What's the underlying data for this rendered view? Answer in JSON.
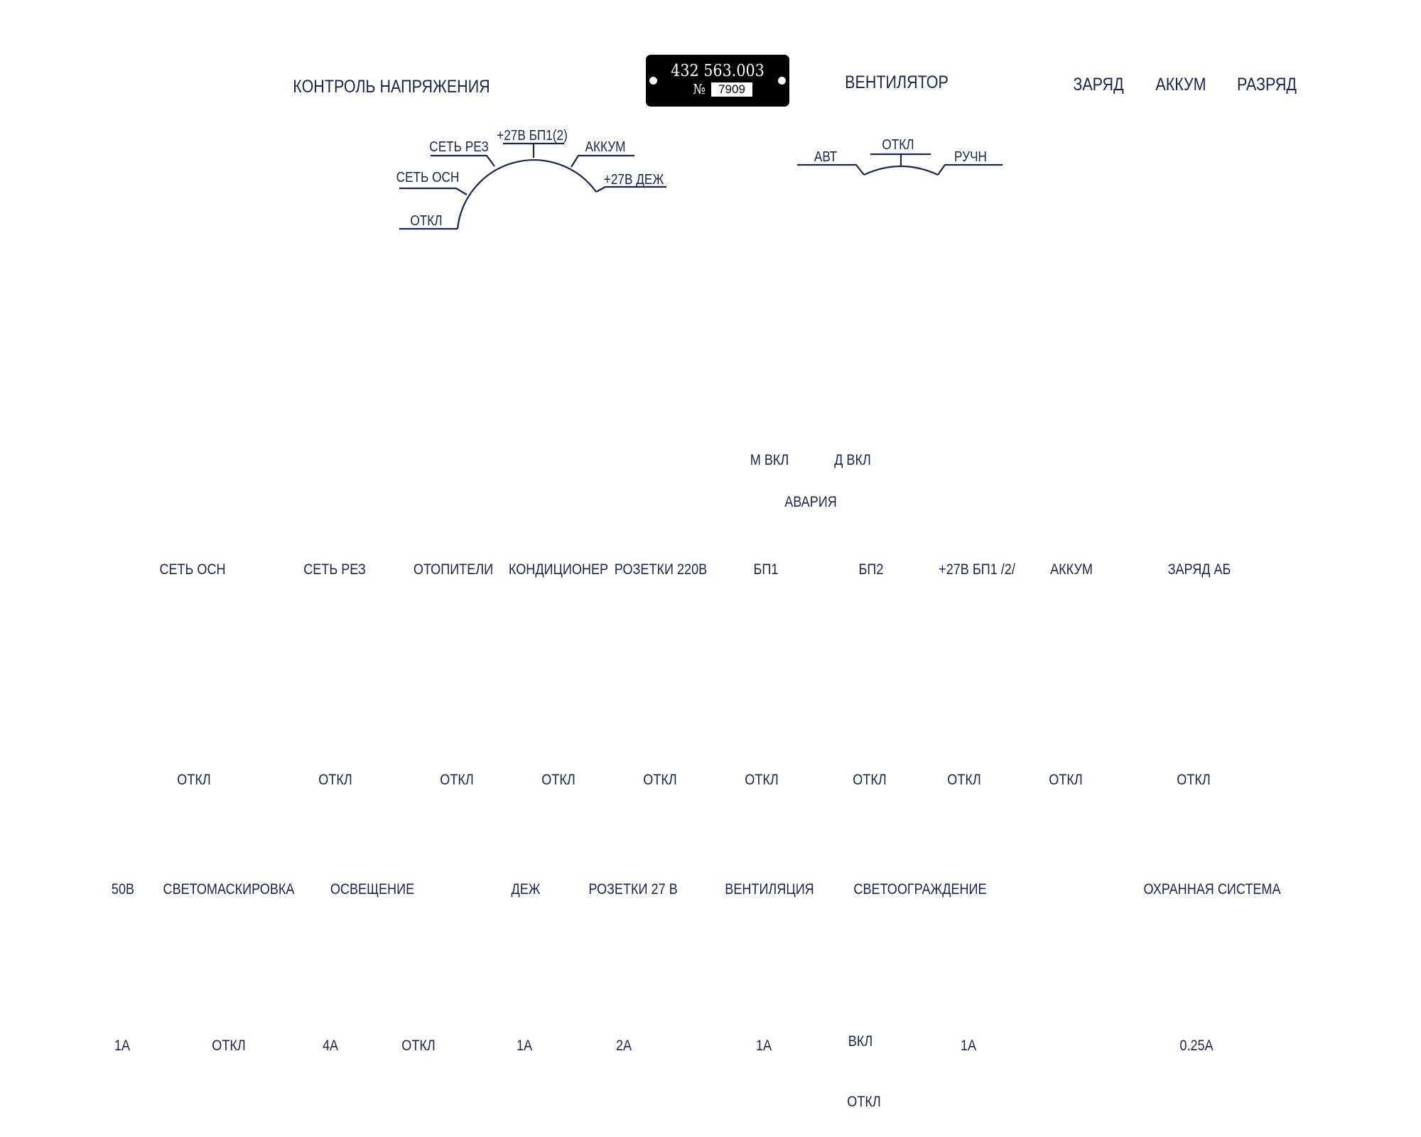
{
  "header": {
    "voltage_control": "КОНТРОЛЬ НАПРЯЖЕНИЯ",
    "fan": "ВЕНТИЛЯТОР",
    "charge": "ЗАРЯД",
    "battery": "АККУМ",
    "discharge": "РАЗРЯД"
  },
  "plate": {
    "code": "432 563.003",
    "number_sign": "№",
    "number": "7909"
  },
  "voltage_dial": {
    "off": "ОТКЛ",
    "main_net": "СЕТЬ ОСН",
    "reserve_net": "СЕТЬ РЕЗ",
    "psu1_2": "+27В БП1(2)",
    "battery": "АККУМ",
    "standby_27v": "+27В ДЕЖ"
  },
  "fan_dial": {
    "auto": "АВТ",
    "off": "ОТКЛ",
    "manual": "РУЧН"
  },
  "indicators": {
    "m_on": "М ВКЛ",
    "d_on": "Д ВКЛ",
    "alarm": "АВАРИЯ"
  },
  "row1": {
    "labels": [
      "СЕТЬ ОСН",
      "СЕТЬ РЕЗ",
      "ОТОПИТЕЛИ",
      "КОНДИЦИОНЕР",
      "РОЗЕТКИ 220В",
      "БП1",
      "БП2",
      "+27В БП1 /2/",
      "АККУМ",
      "ЗАРЯД АБ"
    ],
    "off_labels": [
      "ОТКЛ",
      "ОТКЛ",
      "ОТКЛ",
      "ОТКЛ",
      "ОТКЛ",
      "ОТКЛ",
      "ОТКЛ",
      "ОТКЛ",
      "ОТКЛ",
      "ОТКЛ"
    ]
  },
  "row2": {
    "labels": [
      "50В",
      "СВЕТОМАСКИРОВКА",
      "ОСВЕЩЕНИЕ",
      "ДЕЖ",
      "РОЗЕТКИ 27 В",
      "ВЕНТИЛЯЦИЯ",
      "СВЕТООГРАЖДЕНИЕ",
      "ОХРАННАЯ СИСТЕМА"
    ],
    "ratings": [
      "1А",
      "ОТКЛ",
      "4А",
      "ОТКЛ",
      "1А",
      "2А",
      "1А",
      "1А",
      "0.25А"
    ],
    "lighting_on": "ВКЛ",
    "lighting_off": "ОТКЛ"
  }
}
